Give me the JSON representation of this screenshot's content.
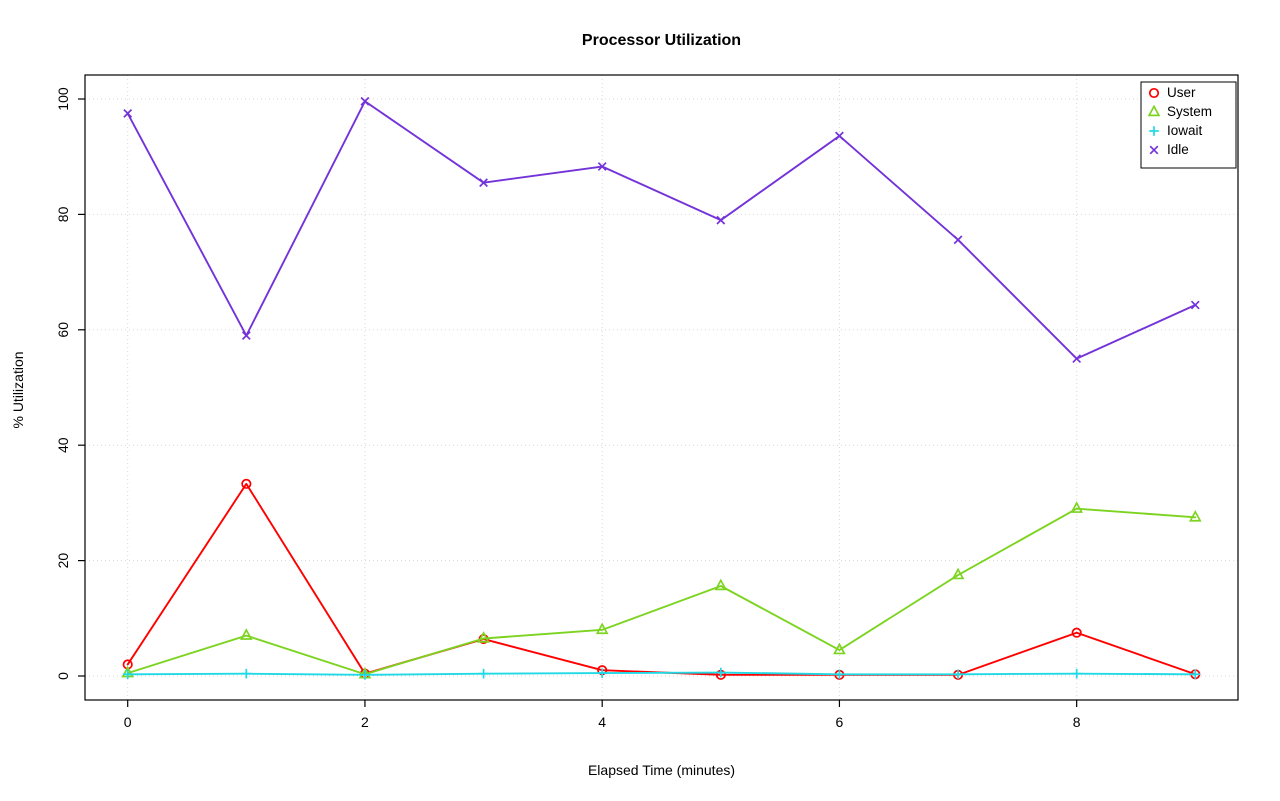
{
  "chart_data": {
    "type": "line",
    "title": "Processor Utilization",
    "xlabel": "Elapsed Time (minutes)",
    "ylabel": "% Utilization",
    "x": [
      0,
      1,
      2,
      3,
      4,
      5,
      6,
      7,
      8,
      9
    ],
    "xticks": [
      0,
      2,
      4,
      6,
      8
    ],
    "yticks": [
      0,
      20,
      40,
      60,
      80,
      100
    ],
    "xlim": [
      -0.36,
      9.36
    ],
    "ylim": [
      -4.16,
      104.16
    ],
    "grid": true,
    "grid_style": "dotted",
    "grid_color": "#d7d7d7",
    "axis_color": "#000000",
    "legend_position": "top-right",
    "series": [
      {
        "name": "User",
        "color": "#ff0000",
        "marker": "circle",
        "values": [
          2.0,
          33.3,
          0.4,
          6.4,
          1.0,
          0.2,
          0.2,
          0.2,
          7.5,
          0.3
        ]
      },
      {
        "name": "System",
        "color": "#7cd421",
        "marker": "triangle",
        "values": [
          0.5,
          7.0,
          0.3,
          6.5,
          8.0,
          15.6,
          4.5,
          17.5,
          29.0,
          27.5
        ]
      },
      {
        "name": "Iowait",
        "color": "#1fd9e5",
        "marker": "plus",
        "values": [
          0.3,
          0.4,
          0.2,
          0.4,
          0.5,
          0.6,
          0.3,
          0.3,
          0.4,
          0.3
        ]
      },
      {
        "name": "Idle",
        "color": "#7433d9",
        "marker": "x",
        "values": [
          97.5,
          59.0,
          99.6,
          85.5,
          88.3,
          79.0,
          93.6,
          75.6,
          55.0,
          64.3
        ]
      }
    ]
  }
}
